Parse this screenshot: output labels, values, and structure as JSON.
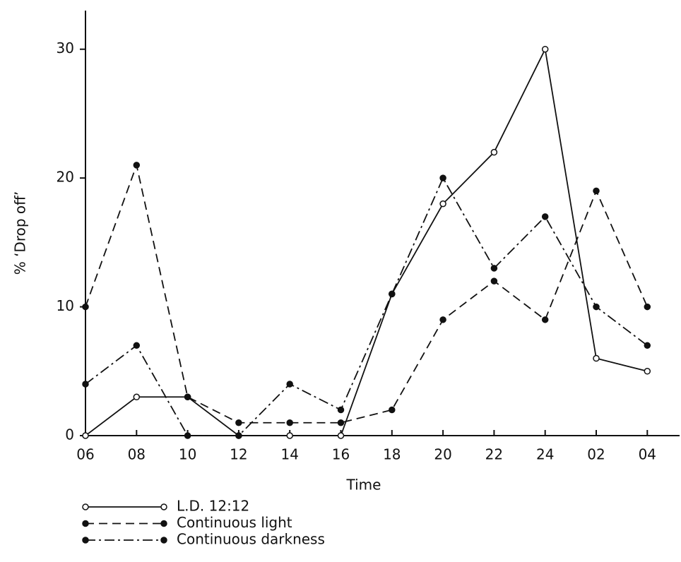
{
  "chart_data": {
    "type": "line",
    "x_label": "Time",
    "y_label": "% ‘Drop off’",
    "categories": [
      "06",
      "08",
      "10",
      "12",
      "14",
      "16",
      "18",
      "20",
      "22",
      "24",
      "02",
      "04"
    ],
    "ylim": [
      0,
      33
    ],
    "yticks": [
      0,
      10,
      20,
      30
    ],
    "grid": false,
    "legend": "bottom-left",
    "series": [
      {
        "name": "L.D. 12:12",
        "color": "#111111",
        "line_style": "solid",
        "marker": "open",
        "values": [
          0,
          3,
          3,
          0,
          0,
          0,
          11,
          18,
          22,
          30,
          6,
          5
        ]
      },
      {
        "name": "Continuous light",
        "color": "#111111",
        "line_style": "dashed",
        "marker": "filled",
        "values": [
          10,
          21,
          3,
          1,
          1,
          1,
          2,
          9,
          12,
          9,
          19,
          10
        ]
      },
      {
        "name": "Continuous darkness",
        "color": "#111111",
        "line_style": "dashdot",
        "marker": "filled",
        "values": [
          4,
          7,
          0,
          0,
          4,
          2,
          11,
          20,
          13,
          17,
          10,
          7
        ]
      }
    ]
  }
}
